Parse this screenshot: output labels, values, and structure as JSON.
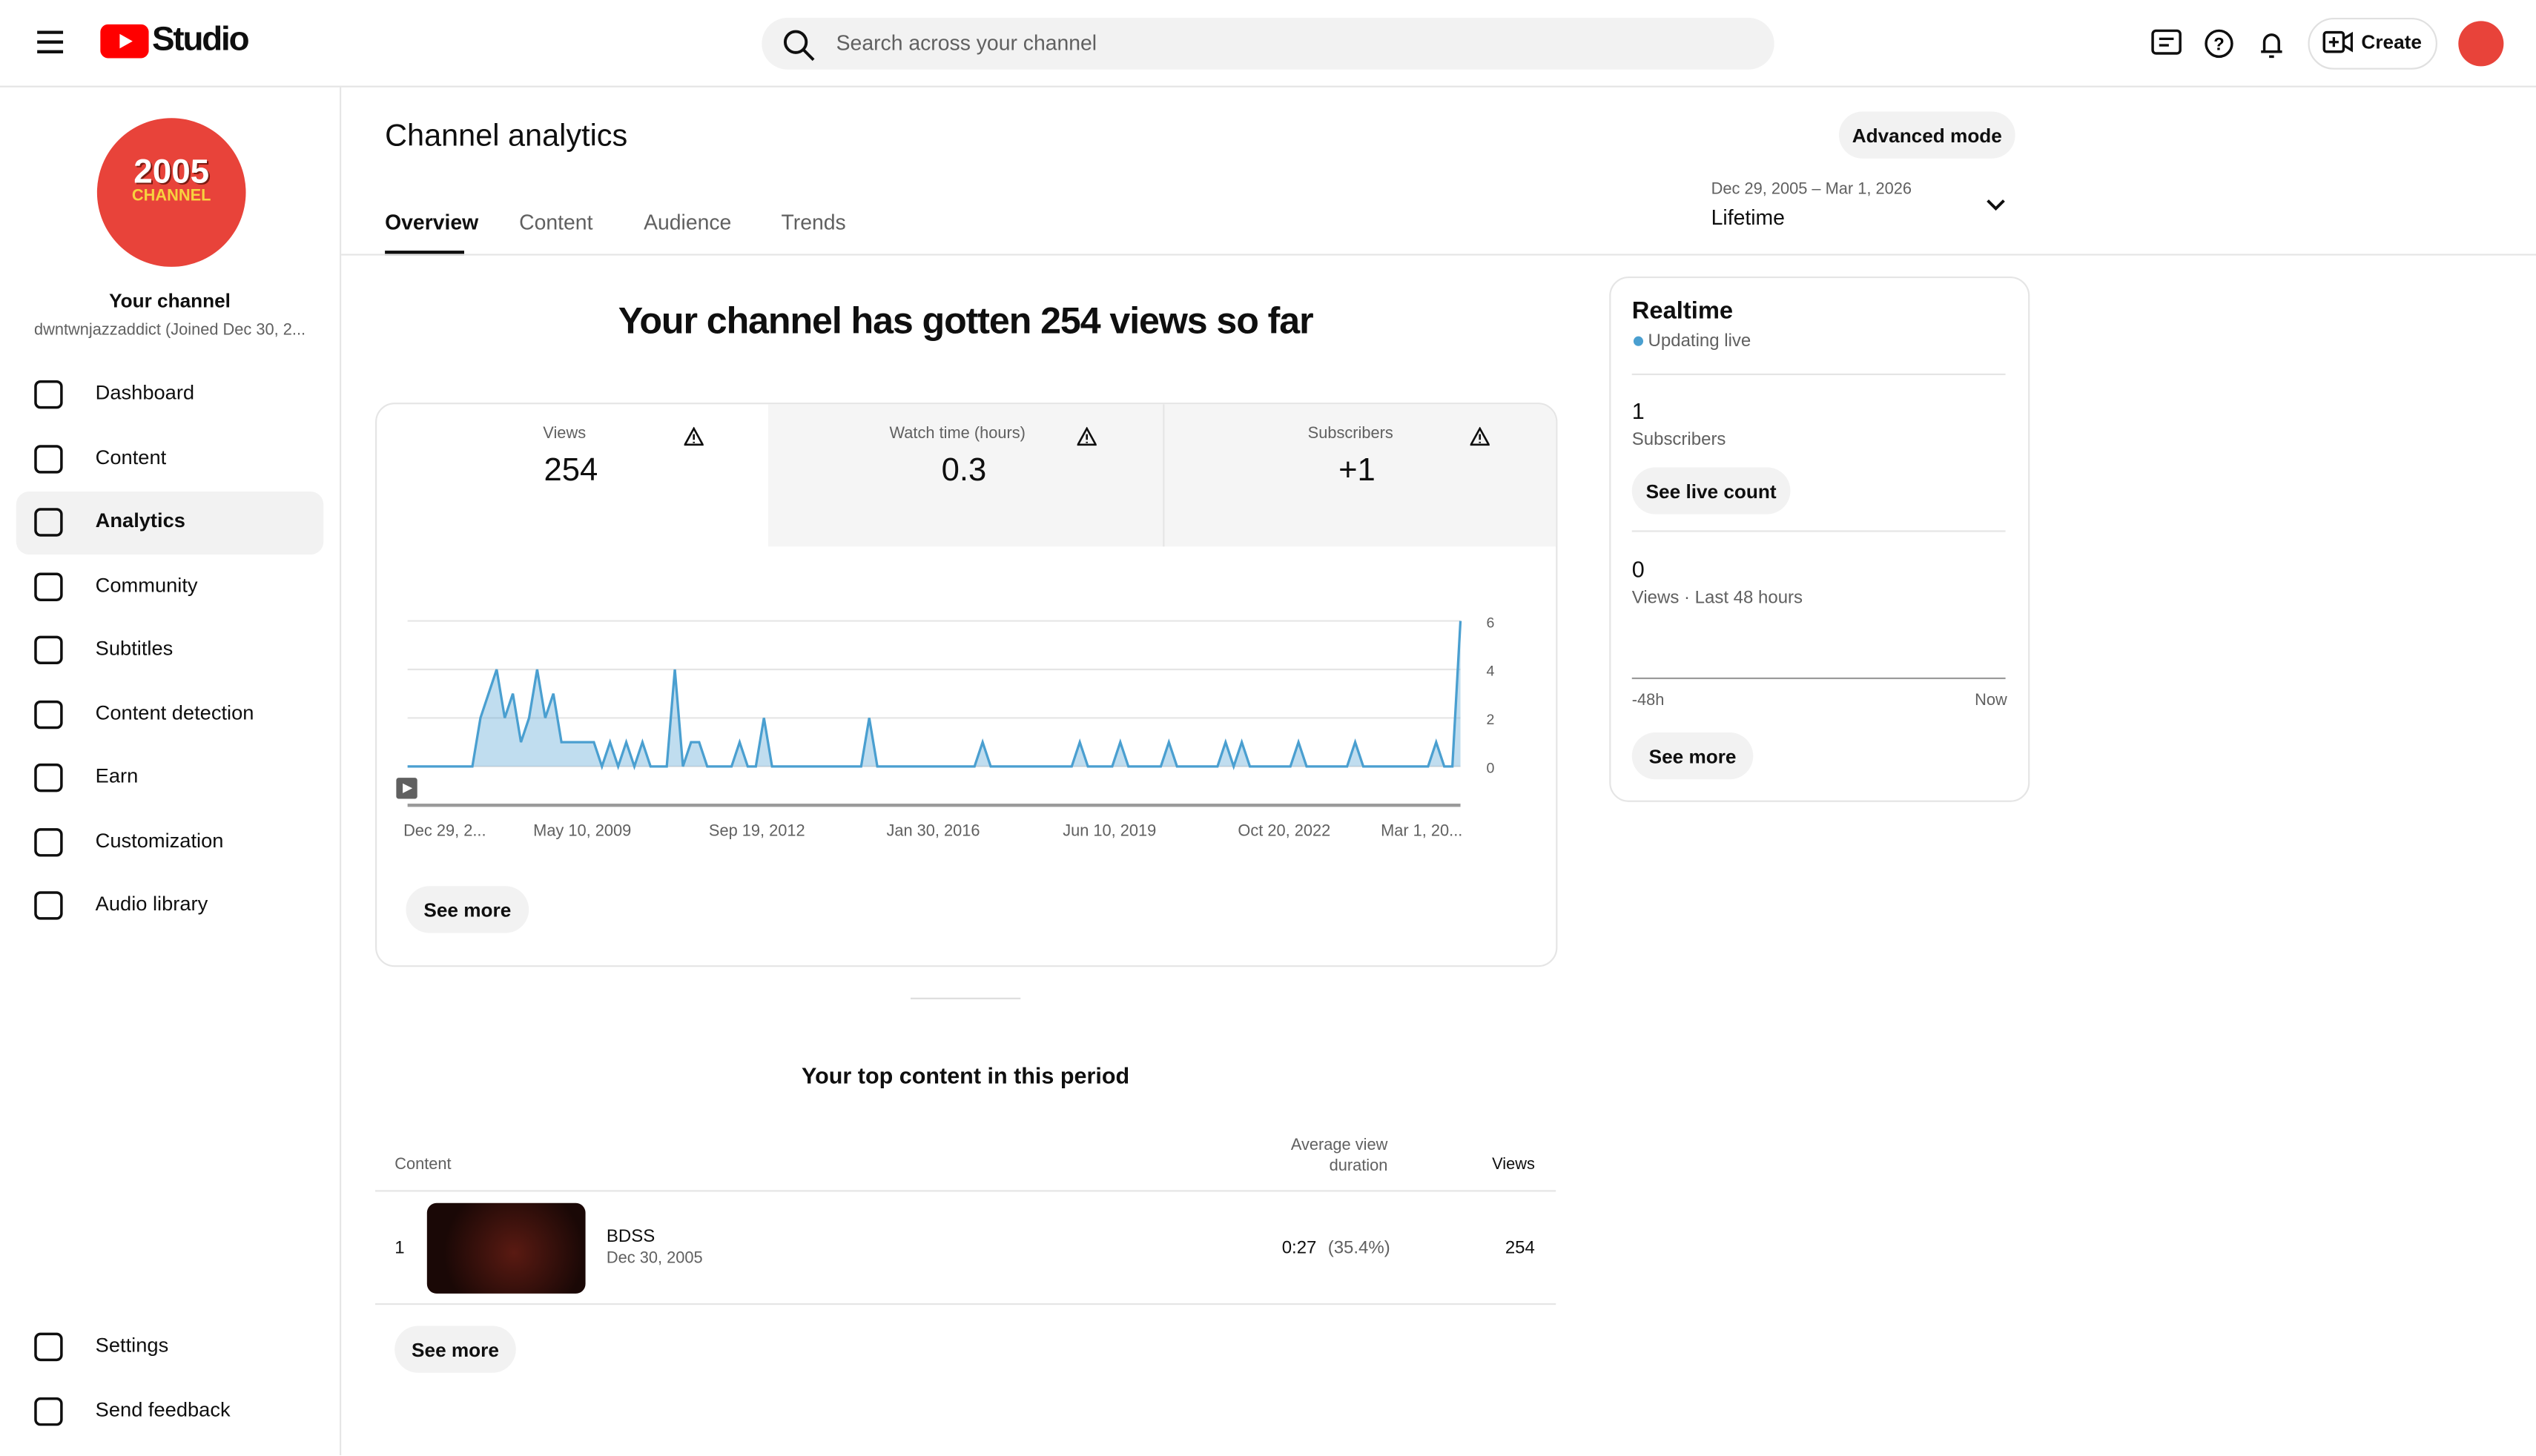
{
  "header": {
    "logo": "Studio",
    "search_placeholder": "Search across your channel",
    "create": "Create"
  },
  "sidebar": {
    "avatar_line1": "2005",
    "avatar_line2": "CHANNEL",
    "channel_label": "Your channel",
    "channel_handle": "dwntwnjazzaddict (Joined Dec 30, 2...",
    "nav": [
      "Dashboard",
      "Content",
      "Analytics",
      "Community",
      "Subtitles",
      "Content detection",
      "Earn",
      "Customization",
      "Audio library"
    ],
    "bottom": [
      "Settings",
      "Send feedback"
    ]
  },
  "page": {
    "title": "Channel analytics",
    "advanced": "Advanced mode",
    "tabs": [
      "Overview",
      "Content",
      "Audience",
      "Trends"
    ],
    "date_range": "Dec 29, 2005 – Mar 1, 2026",
    "period": "Lifetime"
  },
  "overview": {
    "headline": "Your channel has gotten 254 views so far",
    "metrics": [
      {
        "label": "Views",
        "value": "254"
      },
      {
        "label": "Watch time (hours)",
        "value": "0.3"
      },
      {
        "label": "Subscribers",
        "value": "+1"
      }
    ],
    "see_more": "See more"
  },
  "chart_data": {
    "type": "line",
    "color": "#4a9fd0",
    "ylim": [
      0,
      6
    ],
    "yticks": [
      0,
      2,
      4,
      6
    ],
    "x_labels": [
      "Dec 29, 2...",
      "May 10, 2009",
      "Sep 19, 2012",
      "Jan 30, 2016",
      "Jun 10, 2019",
      "Oct 20, 2022",
      "Mar 1, 20..."
    ],
    "values": [
      0,
      0,
      0,
      0,
      0,
      0,
      0,
      0,
      0,
      2,
      3,
      4,
      2,
      3,
      1,
      2,
      4,
      2,
      3,
      1,
      1,
      1,
      1,
      1,
      0,
      1,
      0,
      1,
      0,
      1,
      0,
      0,
      0,
      4,
      0,
      1,
      1,
      0,
      0,
      0,
      0,
      1,
      0,
      0,
      2,
      0,
      0,
      0,
      0,
      0,
      0,
      0,
      0,
      0,
      0,
      0,
      0,
      2,
      0,
      0,
      0,
      0,
      0,
      0,
      0,
      0,
      0,
      0,
      0,
      0,
      0,
      1,
      0,
      0,
      0,
      0,
      0,
      0,
      0,
      0,
      0,
      0,
      0,
      1,
      0,
      0,
      0,
      0,
      1,
      0,
      0,
      0,
      0,
      0,
      1,
      0,
      0,
      0,
      0,
      0,
      0,
      1,
      0,
      1,
      0,
      0,
      0,
      0,
      0,
      0,
      1,
      0,
      0,
      0,
      0,
      0,
      0,
      1,
      0,
      0,
      0,
      0,
      0,
      0,
      0,
      0,
      0,
      1,
      0,
      0,
      6
    ]
  },
  "top_content": {
    "title": "Your top content in this period",
    "col_content": "Content",
    "col_avd": "Average view duration",
    "col_views": "Views",
    "rows": [
      {
        "rank": "1",
        "title": "BDSS",
        "date": "Dec 30, 2005",
        "avd": "0:27",
        "avd_pct": "(35.4%)",
        "views": "254"
      }
    ],
    "see_more": "See more"
  },
  "realtime": {
    "title": "Realtime",
    "status": "Updating live",
    "subs_value": "1",
    "subs_label": "Subscribers",
    "live_count": "See live count",
    "views_value": "0",
    "views_label": "Views · Last 48 hours",
    "axis_start": "-48h",
    "axis_end": "Now",
    "see_more": "See more"
  }
}
